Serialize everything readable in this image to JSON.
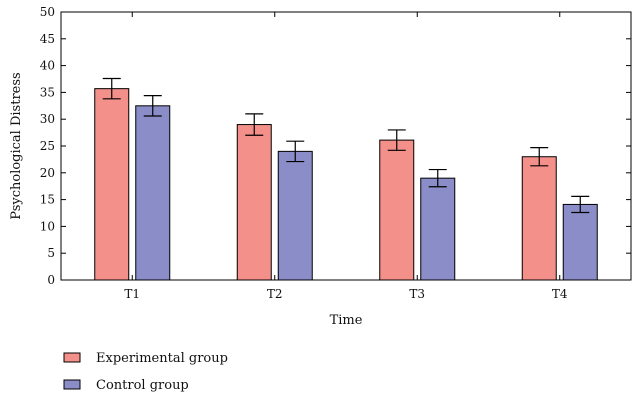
{
  "chart_data": {
    "type": "bar",
    "xlabel": "Time",
    "ylabel": "Psychological Distress",
    "categories": [
      "T1",
      "T2",
      "T3",
      "T4"
    ],
    "ylim": [
      0,
      50
    ],
    "yticks": [
      0,
      5,
      10,
      15,
      20,
      25,
      30,
      35,
      40,
      45,
      50
    ],
    "grid": false,
    "legend_position": "bottom-left",
    "series": [
      {
        "name": "Experimental group",
        "color": "#f4908a",
        "values": [
          35.7,
          29.0,
          26.1,
          23.0
        ],
        "error": [
          1.9,
          2.0,
          1.9,
          1.7
        ]
      },
      {
        "name": "Control group",
        "color": "#8b8dc8",
        "values": [
          32.5,
          24.0,
          19.0,
          14.1
        ],
        "error": [
          1.9,
          1.9,
          1.6,
          1.5
        ]
      }
    ]
  }
}
